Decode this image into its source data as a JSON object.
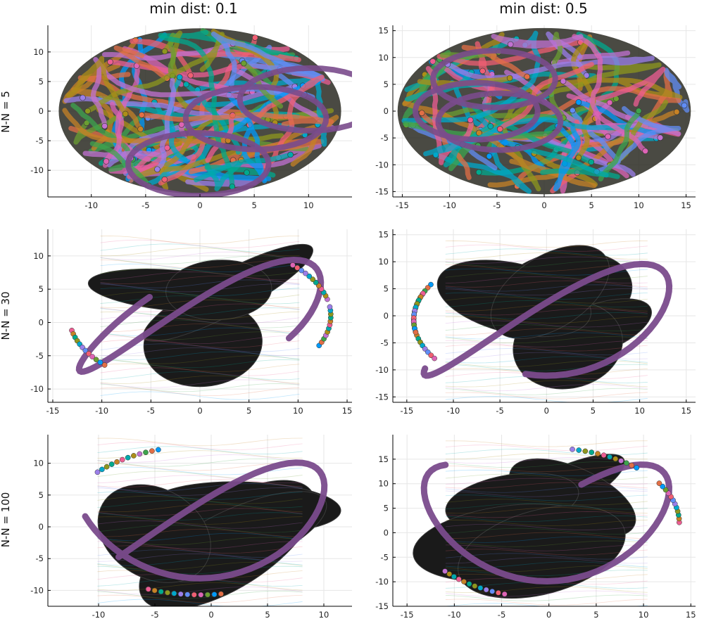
{
  "figure": {
    "col_titles": [
      "min dist: 0.1",
      "min dist: 0.5"
    ],
    "row_labels": [
      "N-N = 5",
      "N-N = 30",
      "N-N = 100"
    ]
  },
  "chart_data": [
    {
      "type": "scatter",
      "title": "min dist: 0.1",
      "ylabel": "N-N = 5",
      "xlabel": "",
      "xlim": [
        -14,
        14
      ],
      "ylim": [
        -14.5,
        14.5
      ],
      "xticks": [
        -10,
        -5,
        0,
        5,
        10
      ],
      "yticks": [
        -10,
        -5,
        0,
        5,
        10
      ],
      "grid": true,
      "legend": "none",
      "shape": "tangled ellipse",
      "shape_extent": {
        "x": [
          -13,
          13
        ],
        "y": [
          -14,
          14
        ]
      }
    },
    {
      "type": "scatter",
      "title": "min dist: 0.5",
      "ylabel": "",
      "xlabel": "",
      "xlim": [
        -16,
        16
      ],
      "ylim": [
        -16,
        16
      ],
      "xticks": [
        -15,
        -10,
        -5,
        0,
        5,
        10,
        15
      ],
      "yticks": [
        -15,
        -10,
        -5,
        0,
        5,
        10,
        15
      ],
      "grid": true,
      "legend": "none",
      "shape": "tangled ellipse",
      "shape_extent": {
        "x": [
          -15.5,
          15.5
        ],
        "y": [
          -15.5,
          15.5
        ]
      }
    },
    {
      "type": "scatter",
      "title": "",
      "ylabel": "N-N = 30",
      "xlabel": "",
      "xlim": [
        -15.5,
        15.5
      ],
      "ylim": [
        -12,
        14
      ],
      "xticks": [
        -15,
        -10,
        -5,
        0,
        5,
        10,
        15
      ],
      "yticks": [
        -10,
        -5,
        0,
        5,
        10
      ],
      "grid": true,
      "legend": "none",
      "shape": "folded sheet with strands",
      "shape_extent": {
        "x": [
          -14.5,
          14.5
        ],
        "y": [
          -11,
          13
        ]
      }
    },
    {
      "type": "scatter",
      "title": "",
      "ylabel": "",
      "xlabel": "",
      "xlim": [
        -16.5,
        16
      ],
      "ylim": [
        -16,
        16
      ],
      "xticks": [
        -15,
        -10,
        -5,
        0,
        5,
        10,
        15
      ],
      "yticks": [
        -15,
        -10,
        -5,
        0,
        5,
        10,
        15
      ],
      "grid": true,
      "legend": "none",
      "shape": "folded sheet with strands",
      "shape_extent": {
        "x": [
          -15.5,
          15.5
        ],
        "y": [
          -15.5,
          14
        ]
      }
    },
    {
      "type": "scatter",
      "title": "",
      "ylabel": "N-N = 100",
      "xlabel": "",
      "xlim": [
        -14.5,
        12.5
      ],
      "ylim": [
        -12.5,
        14.5
      ],
      "xticks": [
        -10,
        -5,
        0,
        5,
        10
      ],
      "yticks": [
        -10,
        -5,
        0,
        5,
        10
      ],
      "grid": true,
      "legend": "none",
      "shape": "folded sheet with strands",
      "shape_extent": {
        "x": [
          -14,
          12
        ],
        "y": [
          -12,
          14
        ]
      }
    },
    {
      "type": "scatter",
      "title": "",
      "ylabel": "",
      "xlabel": "",
      "xlim": [
        -16.5,
        15.5
      ],
      "ylim": [
        -15,
        20
      ],
      "xticks": [
        -15,
        -10,
        -5,
        0,
        5,
        10,
        15
      ],
      "yticks": [
        -15,
        -10,
        -5,
        0,
        5,
        10,
        15
      ],
      "grid": true,
      "legend": "none",
      "shape": "folded sheet with strands",
      "shape_extent": {
        "x": [
          -15.5,
          15
        ],
        "y": [
          -15,
          19
        ]
      }
    }
  ],
  "palette": [
    "#009af9",
    "#e26f46",
    "#3da44d",
    "#c271d2",
    "#ac8e18",
    "#00a9ad",
    "#ed5e93",
    "#c68225",
    "#00a98d",
    "#8e971e",
    "#00a8cb",
    "#9b7fe9",
    "#618df6",
    "#f05f73",
    "#dd64b5",
    "#6b9e32"
  ],
  "accent_strand_color": "#7a4b8c",
  "body_color": "#1a1a1a"
}
